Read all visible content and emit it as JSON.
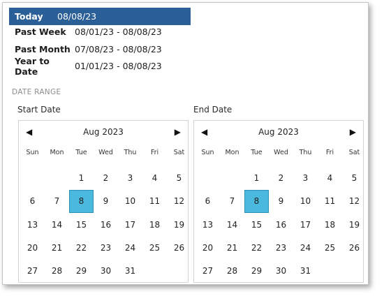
{
  "presets": [
    {
      "label": "Today",
      "range": "08/08/23",
      "selected": true
    },
    {
      "label": "Past Week",
      "range": "08/01/23 - 08/08/23",
      "selected": false
    },
    {
      "label": "Past Month",
      "range": "07/08/23 - 08/08/23",
      "selected": false
    },
    {
      "label": "Year to Date",
      "range": "01/01/23 - 08/08/23",
      "selected": false
    }
  ],
  "date_range": {
    "section_label": "DATE RANGE",
    "start": {
      "label": "Start Date",
      "month_label": "Aug 2023",
      "prev_icon": "◀",
      "next_icon": "▶",
      "weekdays": [
        "Sun",
        "Mon",
        "Tue",
        "Wed",
        "Thu",
        "Fri",
        "Sat"
      ],
      "first_weekday_index": 2,
      "days_in_month": 31,
      "selected_day": 8
    },
    "end": {
      "label": "End Date",
      "month_label": "Aug 2023",
      "prev_icon": "◀",
      "next_icon": "▶",
      "weekdays": [
        "Sun",
        "Mon",
        "Tue",
        "Wed",
        "Thu",
        "Fri",
        "Sat"
      ],
      "first_weekday_index": 2,
      "days_in_month": 31,
      "selected_day": 8
    }
  },
  "colors": {
    "selected_preset_bg": "#2a5f97",
    "selected_day_bg": "#4bb9de"
  }
}
